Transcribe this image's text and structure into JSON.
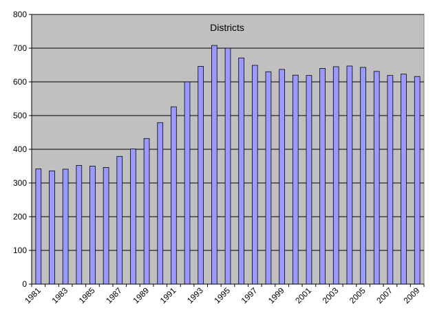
{
  "chart_data": {
    "type": "bar",
    "title": "Districts",
    "xlabel": "",
    "ylabel": "",
    "ylim": [
      0,
      800
    ],
    "yticks": [
      "0",
      "100",
      "200",
      "300",
      "400",
      "500",
      "600",
      "700",
      "800"
    ],
    "grid": true,
    "legend": "none",
    "categories": [
      "1981",
      "1982",
      "1983",
      "1984",
      "1985",
      "1986",
      "1987",
      "1988",
      "1989",
      "1990",
      "1991",
      "1992",
      "1993",
      "1994",
      "1995",
      "1996",
      "1997",
      "1998",
      "1999",
      "2000",
      "2001",
      "2002",
      "2003",
      "2004",
      "2005",
      "2006",
      "2007",
      "2008",
      "2009"
    ],
    "xtick_labels": [
      "1981",
      "",
      "1983",
      "",
      "1985",
      "",
      "1987",
      "",
      "1989",
      "",
      "1991",
      "",
      "1993",
      "",
      "1995",
      "",
      "1997",
      "",
      "1999",
      "",
      "2001",
      "",
      "2003",
      "",
      "2005",
      "",
      "2007",
      "",
      "2009"
    ],
    "values": [
      342,
      336,
      341,
      352,
      350,
      346,
      379,
      401,
      432,
      479,
      526,
      600,
      646,
      708,
      700,
      671,
      649,
      630,
      637,
      620,
      619,
      640,
      645,
      647,
      643,
      631,
      619,
      623,
      616
    ],
    "colors": {
      "plot_bg": "#c0c0c0",
      "bar_fill": "#9999ff",
      "bar_stroke": "#000000",
      "grid": "#000000"
    }
  }
}
